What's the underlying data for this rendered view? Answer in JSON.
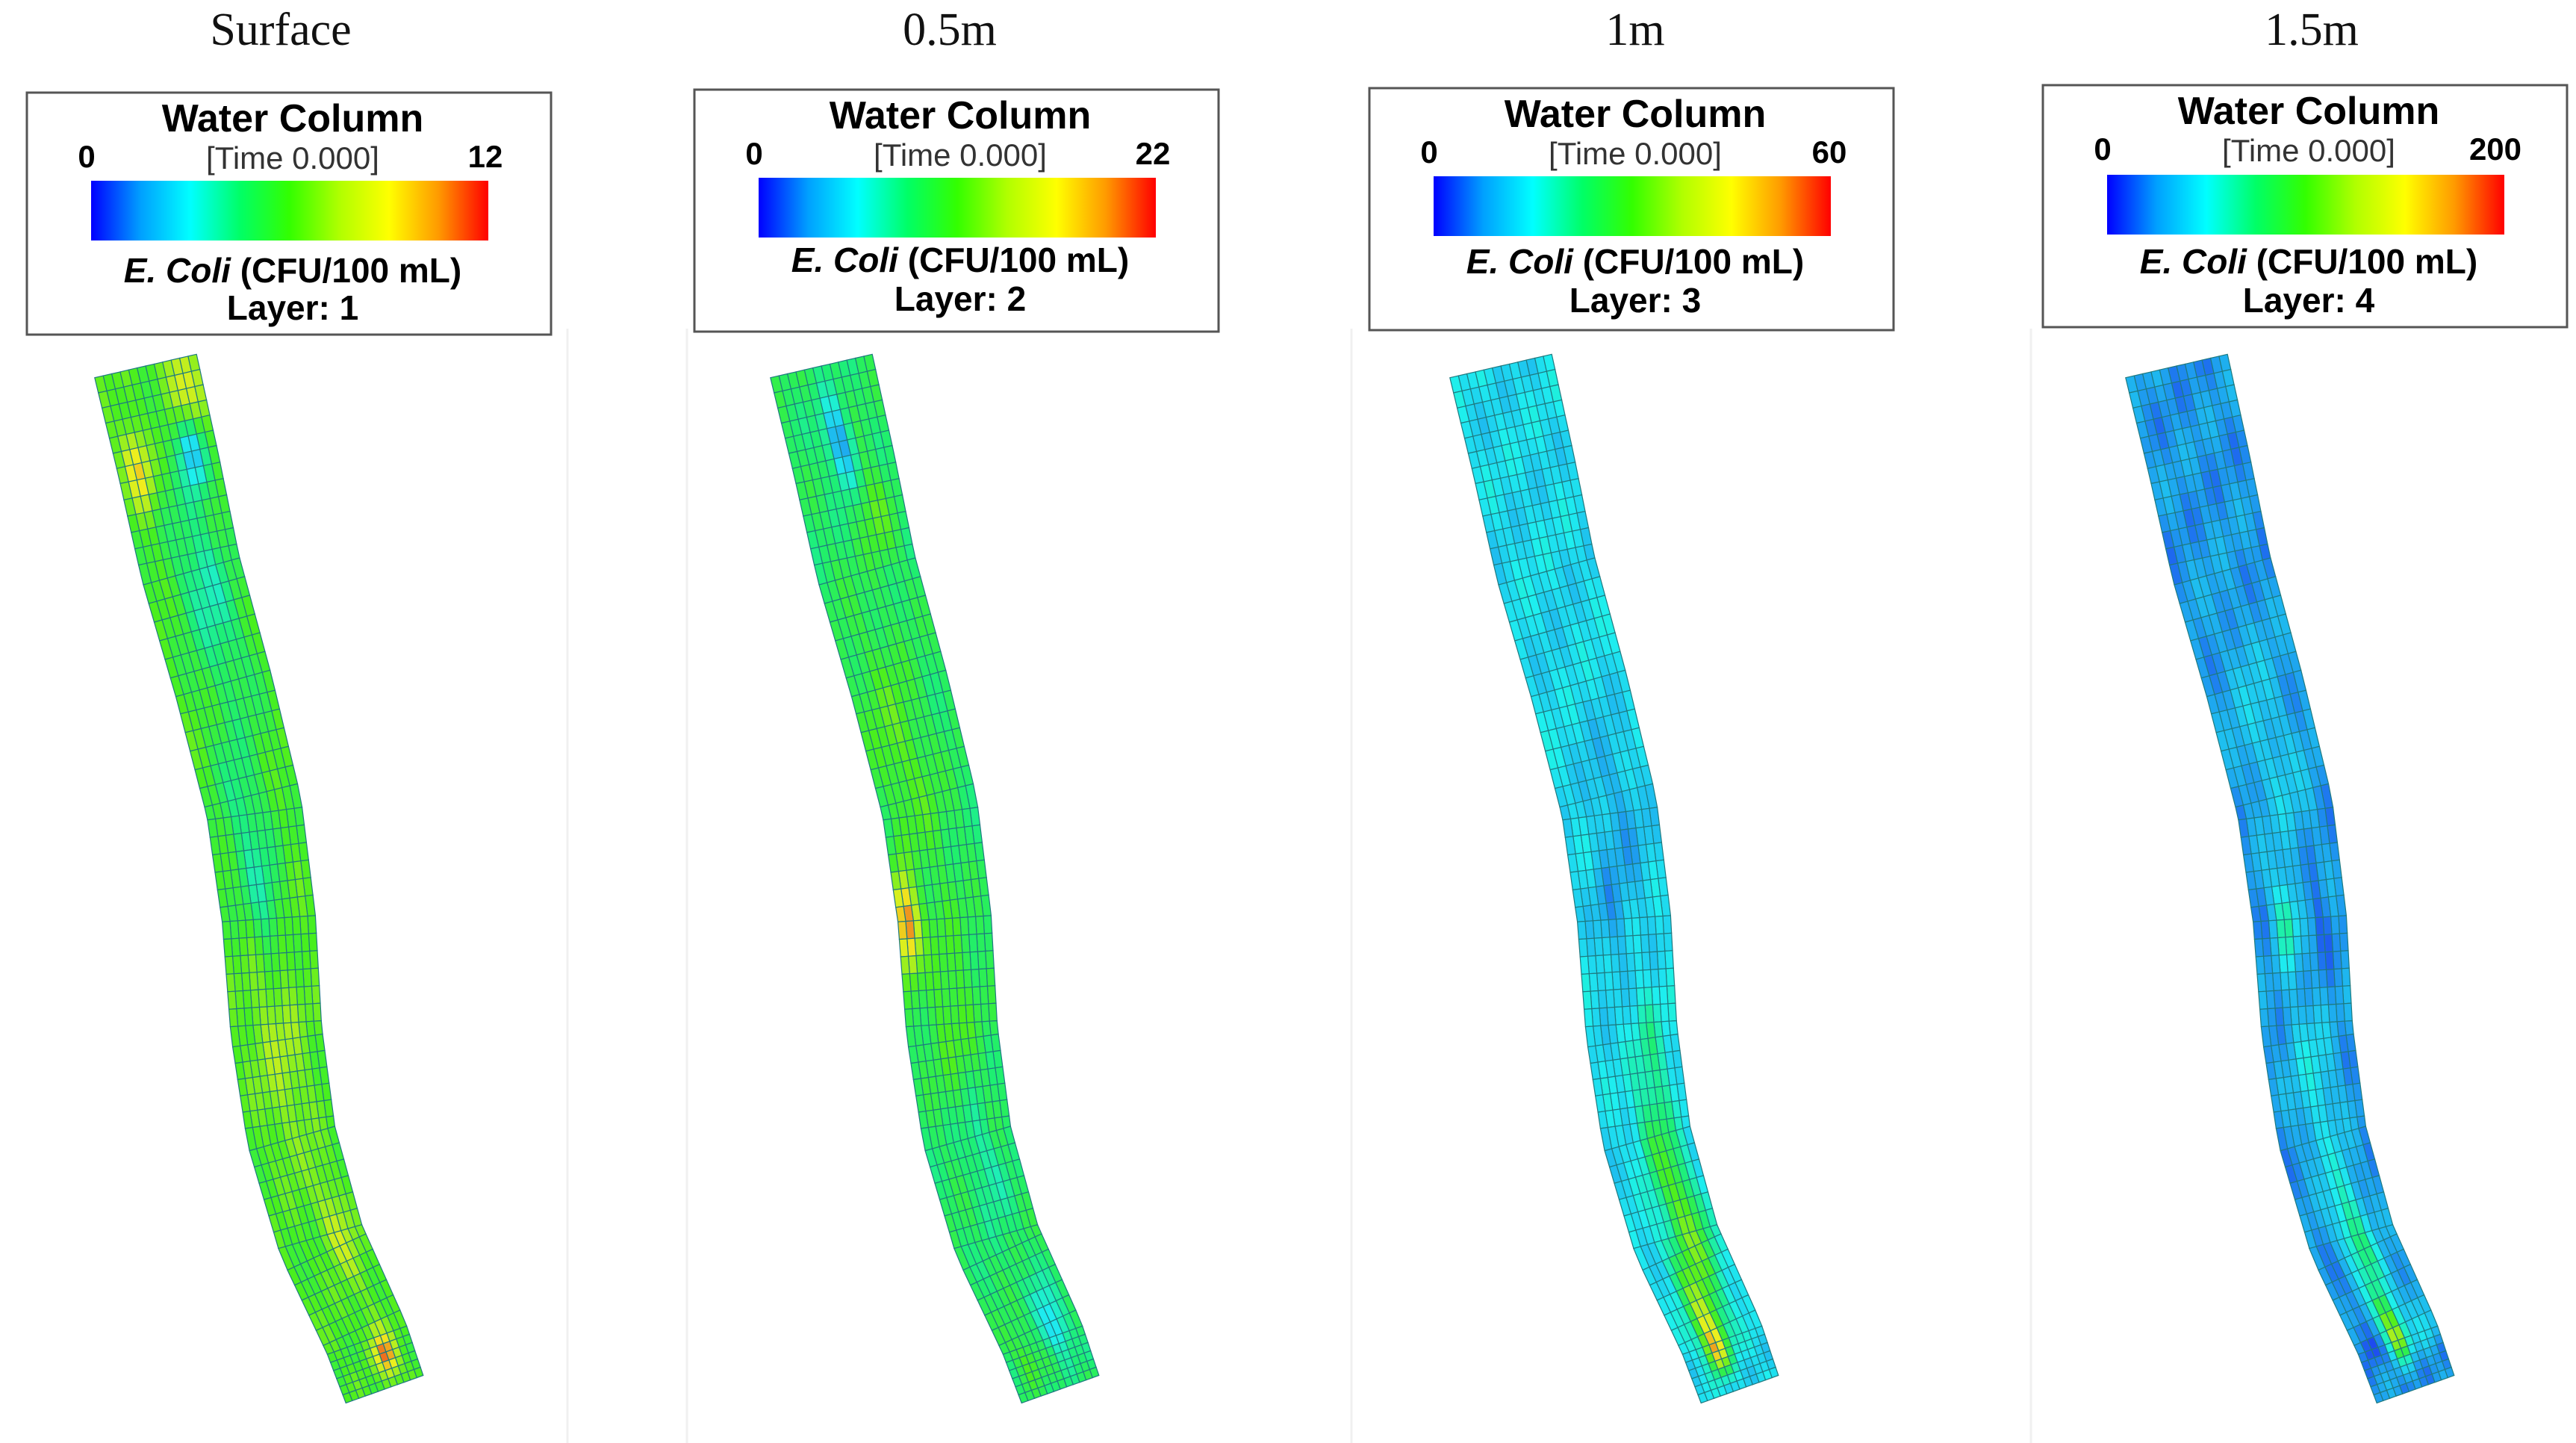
{
  "colormap": {
    "stops": [
      "#0000ff",
      "#00a0ff",
      "#00ffff",
      "#00ff66",
      "#33ff00",
      "#b0ff00",
      "#ffff00",
      "#ff9900",
      "#ff0000"
    ],
    "grid_line_color": "#1e7a80"
  },
  "panels": [
    {
      "title": "Surface",
      "legend": {
        "heading": "Water Column",
        "min_label": "0",
        "max_label": "12",
        "time_label": "[Time 0.000]",
        "variable_italic": "E. Coli",
        "variable_units": "(CFU/100 mL)",
        "layer_label": "Layer: 1"
      },
      "field": {
        "base_level": 0.5,
        "hotspots": [
          {
            "along": 0.03,
            "across": 0.2,
            "strength": 0.25,
            "spread": 0.05
          },
          {
            "along": 0.09,
            "across": 0.25,
            "strength": -0.35,
            "spread": 0.04
          },
          {
            "along": 0.1,
            "across": 0.8,
            "strength": 0.3,
            "spread": 0.04
          },
          {
            "along": 0.22,
            "across": 0.4,
            "strength": -0.18,
            "spread": 0.1
          },
          {
            "along": 0.42,
            "across": 0.6,
            "strength": -0.15,
            "spread": 0.08
          },
          {
            "along": 0.5,
            "across": 0.5,
            "strength": -0.12,
            "spread": 0.05
          },
          {
            "along": 0.62,
            "across": 0.5,
            "strength": 0.12,
            "spread": 0.1
          },
          {
            "along": 0.8,
            "across": 0.3,
            "strength": 0.18,
            "spread": 0.05
          },
          {
            "along": 0.94,
            "across": 0.35,
            "strength": 0.45,
            "spread": 0.04
          }
        ]
      }
    },
    {
      "title": "0.5m",
      "legend": {
        "heading": "Water Column",
        "min_label": "0",
        "max_label": "22",
        "time_label": "[Time 0.000]",
        "variable_italic": "E. Coli",
        "variable_units": "(CFU/100 mL)",
        "layer_label": "Layer: 2"
      },
      "field": {
        "base_level": 0.4,
        "hotspots": [
          {
            "along": 0.08,
            "across": 0.5,
            "strength": -0.3,
            "spread": 0.04
          },
          {
            "along": 0.15,
            "across": 0.3,
            "strength": 0.12,
            "spread": 0.05
          },
          {
            "along": 0.35,
            "across": 0.65,
            "strength": 0.12,
            "spread": 0.1
          },
          {
            "along": 0.5,
            "across": 0.9,
            "strength": 0.55,
            "spread": 0.04
          },
          {
            "along": 0.58,
            "across": 0.5,
            "strength": 0.1,
            "spread": 0.1
          },
          {
            "along": 0.72,
            "across": 0.4,
            "strength": -0.1,
            "spread": 0.06
          },
          {
            "along": 0.9,
            "across": 0.3,
            "strength": -0.18,
            "spread": 0.05
          },
          {
            "along": 0.93,
            "across": 0.75,
            "strength": 0.12,
            "spread": 0.04
          }
        ]
      }
    },
    {
      "title": "1m",
      "legend": {
        "heading": "Water Column",
        "min_label": "0",
        "max_label": "60",
        "time_label": "[Time 0.000]",
        "variable_italic": "E. Coli",
        "variable_units": "(CFU/100 mL)",
        "layer_label": "Layer: 3"
      },
      "field": {
        "base_level": 0.22,
        "hotspots": [
          {
            "along": 0.42,
            "across": 0.4,
            "strength": -0.08,
            "spread": 0.08
          },
          {
            "along": 0.5,
            "across": 0.65,
            "strength": -0.08,
            "spread": 0.05
          },
          {
            "along": 0.62,
            "across": 0.3,
            "strength": 0.1,
            "spread": 0.06
          },
          {
            "along": 0.72,
            "across": 0.4,
            "strength": 0.2,
            "spread": 0.07
          },
          {
            "along": 0.8,
            "across": 0.3,
            "strength": 0.28,
            "spread": 0.06
          },
          {
            "along": 0.87,
            "across": 0.55,
            "strength": 0.35,
            "spread": 0.06
          },
          {
            "along": 0.92,
            "across": 0.62,
            "strength": 0.5,
            "spread": 0.04
          }
        ]
      }
    },
    {
      "title": "1.5m",
      "legend": {
        "heading": "Water Column",
        "min_label": "0",
        "max_label": "200",
        "time_label": "[Time 0.000]",
        "variable_italic": "E. Coli",
        "variable_units": "(CFU/100 mL)",
        "layer_label": "Layer: 4"
      },
      "field": {
        "base_level": 0.12,
        "hotspots": [
          {
            "along": 0.35,
            "across": 0.5,
            "strength": 0.08,
            "spread": 0.1
          },
          {
            "along": 0.5,
            "across": 0.3,
            "strength": -0.06,
            "spread": 0.04
          },
          {
            "along": 0.5,
            "across": 0.65,
            "strength": 0.22,
            "spread": 0.04
          },
          {
            "along": 0.65,
            "across": 0.5,
            "strength": 0.12,
            "spread": 0.08
          },
          {
            "along": 0.8,
            "across": 0.45,
            "strength": 0.25,
            "spread": 0.06
          },
          {
            "along": 0.9,
            "across": 0.5,
            "strength": 0.55,
            "spread": 0.04
          },
          {
            "along": 0.9,
            "across": 0.85,
            "strength": -0.1,
            "spread": 0.03
          },
          {
            "along": 0.9,
            "across": 0.15,
            "strength": 0.1,
            "spread": 0.04
          }
        ]
      }
    }
  ]
}
